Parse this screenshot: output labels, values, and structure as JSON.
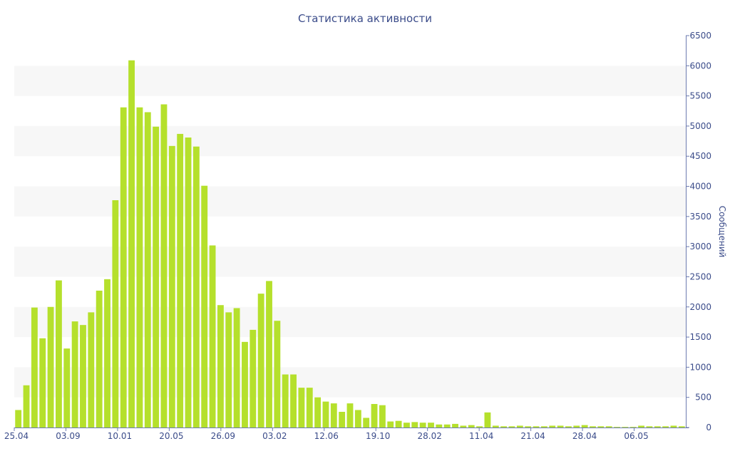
{
  "chart_data": {
    "type": "bar",
    "title": "Статистика активности",
    "xlabel": "",
    "ylabel": "Сообщений",
    "ylim": [
      0,
      6500
    ],
    "yticks": [
      0,
      500,
      1000,
      1500,
      2000,
      2500,
      3000,
      3500,
      4000,
      4500,
      5000,
      5500,
      6000,
      6500
    ],
    "y_axis_side": "right",
    "grid": "alternating horizontal bands",
    "xtick_labels": [
      "25.04",
      "03.09",
      "10.01",
      "20.05",
      "26.09",
      "03.02",
      "12.06",
      "19.10",
      "28.02",
      "11.04",
      "21.04",
      "28.04",
      "06.05"
    ],
    "values": [
      290,
      700,
      1990,
      1480,
      2000,
      2440,
      1310,
      1760,
      1700,
      1910,
      2270,
      2460,
      3770,
      5310,
      6090,
      5310,
      5230,
      4990,
      5360,
      4670,
      4870,
      4810,
      4660,
      4010,
      3020,
      2030,
      1910,
      1980,
      1420,
      1620,
      2220,
      2430,
      1770,
      880,
      880,
      660,
      660,
      500,
      430,
      400,
      260,
      400,
      290,
      160,
      390,
      370,
      100,
      110,
      80,
      90,
      80,
      80,
      50,
      50,
      60,
      30,
      40,
      20,
      250,
      30,
      20,
      20,
      30,
      20,
      20,
      20,
      30,
      30,
      20,
      30,
      40,
      20,
      20,
      20,
      10,
      10,
      10,
      30,
      20,
      20,
      20,
      30,
      20
    ]
  },
  "colors": {
    "bar": "#b5e02c",
    "text": "#3b4c8a",
    "band": "#f7f7f7",
    "axis": "#6c7bb0"
  }
}
